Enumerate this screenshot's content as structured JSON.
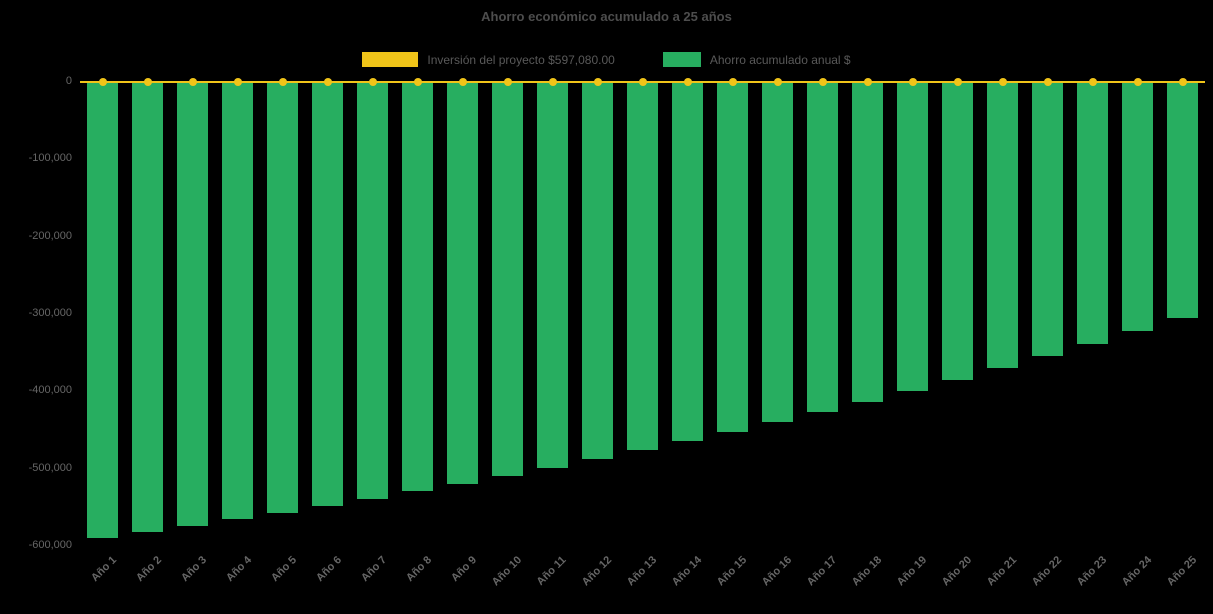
{
  "chart_data": {
    "type": "bar",
    "title": "Ahorro económico acumulado a 25 años",
    "categories": [
      "Año 1",
      "Año 2",
      "Año 3",
      "Año 4",
      "Año 5",
      "Año 6",
      "Año 7",
      "Año 8",
      "Año 9",
      "Año 10",
      "Año 11",
      "Año 12",
      "Año 13",
      "Año 14",
      "Año 15",
      "Año 16",
      "Año 17",
      "Año 18",
      "Año 19",
      "Año 20",
      "Año 21",
      "Año 22",
      "Año 23",
      "Año 24",
      "Año 25"
    ],
    "series": [
      {
        "name": "Inversión del proyecto $597,080.00",
        "type": "line",
        "color": "#f0c419",
        "values": [
          0,
          0,
          0,
          0,
          0,
          0,
          0,
          0,
          0,
          0,
          0,
          0,
          0,
          0,
          0,
          0,
          0,
          0,
          0,
          0,
          0,
          0,
          0,
          0,
          0
        ]
      },
      {
        "name": "Ahorro acumulado anual $",
        "type": "bar",
        "color": "#27ae60",
        "values": [
          -589580,
          -581818,
          -573783,
          -565468,
          -556861,
          -547954,
          -538734,
          -529192,
          -519316,
          -509095,
          -498515,
          -487565,
          -476232,
          -464503,
          -452362,
          -439797,
          -426793,
          -413332,
          -399401,
          -384982,
          -370059,
          -354613,
          -338627,
          -322081,
          -304956
        ]
      }
    ],
    "ylim": [
      -600000,
      0
    ],
    "yticks": [
      0,
      -100000,
      -200000,
      -300000,
      -400000,
      -500000,
      -600000
    ],
    "ytick_labels": [
      "0",
      "-100,000",
      "-200,000",
      "-300,000",
      "-400,000",
      "-500,000",
      "-600,000"
    ],
    "grid": false,
    "legend_position": "top",
    "x_label_rotation": -45,
    "colors": {
      "background": "#000000",
      "text": "#666666",
      "title": "#4d4d4d",
      "bar": "#27ae60",
      "line": "#f0c419"
    }
  }
}
